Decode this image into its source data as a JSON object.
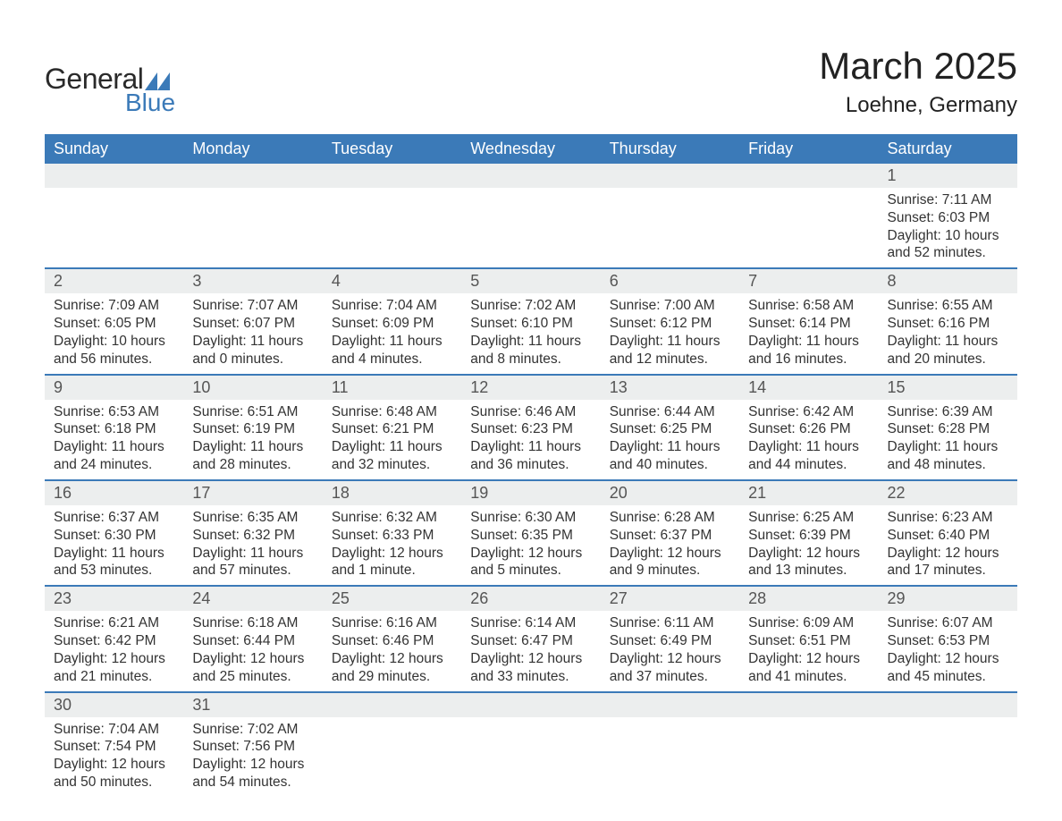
{
  "logo": {
    "text1": "General",
    "text2": "Blue",
    "shape_color": "#3b7ab8"
  },
  "title": "March 2025",
  "location": "Loehne, Germany",
  "colors": {
    "header_bg": "#3b7ab8",
    "header_text": "#ffffff",
    "daynum_bg": "#eceeee",
    "daynum_text": "#555555",
    "body_text": "#333333",
    "row_border": "#3b7ab8",
    "page_bg": "#ffffff"
  },
  "typography": {
    "title_fontsize": 42,
    "location_fontsize": 24,
    "header_fontsize": 18,
    "daynum_fontsize": 18,
    "body_fontsize": 15.5,
    "font_family": "Arial"
  },
  "weekdays": [
    "Sunday",
    "Monday",
    "Tuesday",
    "Wednesday",
    "Thursday",
    "Friday",
    "Saturday"
  ],
  "weeks": [
    [
      {
        "empty": true
      },
      {
        "empty": true
      },
      {
        "empty": true
      },
      {
        "empty": true
      },
      {
        "empty": true
      },
      {
        "empty": true
      },
      {
        "day": "1",
        "sunrise": "Sunrise: 7:11 AM",
        "sunset": "Sunset: 6:03 PM",
        "daylight1": "Daylight: 10 hours",
        "daylight2": "and 52 minutes."
      }
    ],
    [
      {
        "day": "2",
        "sunrise": "Sunrise: 7:09 AM",
        "sunset": "Sunset: 6:05 PM",
        "daylight1": "Daylight: 10 hours",
        "daylight2": "and 56 minutes."
      },
      {
        "day": "3",
        "sunrise": "Sunrise: 7:07 AM",
        "sunset": "Sunset: 6:07 PM",
        "daylight1": "Daylight: 11 hours",
        "daylight2": "and 0 minutes."
      },
      {
        "day": "4",
        "sunrise": "Sunrise: 7:04 AM",
        "sunset": "Sunset: 6:09 PM",
        "daylight1": "Daylight: 11 hours",
        "daylight2": "and 4 minutes."
      },
      {
        "day": "5",
        "sunrise": "Sunrise: 7:02 AM",
        "sunset": "Sunset: 6:10 PM",
        "daylight1": "Daylight: 11 hours",
        "daylight2": "and 8 minutes."
      },
      {
        "day": "6",
        "sunrise": "Sunrise: 7:00 AM",
        "sunset": "Sunset: 6:12 PM",
        "daylight1": "Daylight: 11 hours",
        "daylight2": "and 12 minutes."
      },
      {
        "day": "7",
        "sunrise": "Sunrise: 6:58 AM",
        "sunset": "Sunset: 6:14 PM",
        "daylight1": "Daylight: 11 hours",
        "daylight2": "and 16 minutes."
      },
      {
        "day": "8",
        "sunrise": "Sunrise: 6:55 AM",
        "sunset": "Sunset: 6:16 PM",
        "daylight1": "Daylight: 11 hours",
        "daylight2": "and 20 minutes."
      }
    ],
    [
      {
        "day": "9",
        "sunrise": "Sunrise: 6:53 AM",
        "sunset": "Sunset: 6:18 PM",
        "daylight1": "Daylight: 11 hours",
        "daylight2": "and 24 minutes."
      },
      {
        "day": "10",
        "sunrise": "Sunrise: 6:51 AM",
        "sunset": "Sunset: 6:19 PM",
        "daylight1": "Daylight: 11 hours",
        "daylight2": "and 28 minutes."
      },
      {
        "day": "11",
        "sunrise": "Sunrise: 6:48 AM",
        "sunset": "Sunset: 6:21 PM",
        "daylight1": "Daylight: 11 hours",
        "daylight2": "and 32 minutes."
      },
      {
        "day": "12",
        "sunrise": "Sunrise: 6:46 AM",
        "sunset": "Sunset: 6:23 PM",
        "daylight1": "Daylight: 11 hours",
        "daylight2": "and 36 minutes."
      },
      {
        "day": "13",
        "sunrise": "Sunrise: 6:44 AM",
        "sunset": "Sunset: 6:25 PM",
        "daylight1": "Daylight: 11 hours",
        "daylight2": "and 40 minutes."
      },
      {
        "day": "14",
        "sunrise": "Sunrise: 6:42 AM",
        "sunset": "Sunset: 6:26 PM",
        "daylight1": "Daylight: 11 hours",
        "daylight2": "and 44 minutes."
      },
      {
        "day": "15",
        "sunrise": "Sunrise: 6:39 AM",
        "sunset": "Sunset: 6:28 PM",
        "daylight1": "Daylight: 11 hours",
        "daylight2": "and 48 minutes."
      }
    ],
    [
      {
        "day": "16",
        "sunrise": "Sunrise: 6:37 AM",
        "sunset": "Sunset: 6:30 PM",
        "daylight1": "Daylight: 11 hours",
        "daylight2": "and 53 minutes."
      },
      {
        "day": "17",
        "sunrise": "Sunrise: 6:35 AM",
        "sunset": "Sunset: 6:32 PM",
        "daylight1": "Daylight: 11 hours",
        "daylight2": "and 57 minutes."
      },
      {
        "day": "18",
        "sunrise": "Sunrise: 6:32 AM",
        "sunset": "Sunset: 6:33 PM",
        "daylight1": "Daylight: 12 hours",
        "daylight2": "and 1 minute."
      },
      {
        "day": "19",
        "sunrise": "Sunrise: 6:30 AM",
        "sunset": "Sunset: 6:35 PM",
        "daylight1": "Daylight: 12 hours",
        "daylight2": "and 5 minutes."
      },
      {
        "day": "20",
        "sunrise": "Sunrise: 6:28 AM",
        "sunset": "Sunset: 6:37 PM",
        "daylight1": "Daylight: 12 hours",
        "daylight2": "and 9 minutes."
      },
      {
        "day": "21",
        "sunrise": "Sunrise: 6:25 AM",
        "sunset": "Sunset: 6:39 PM",
        "daylight1": "Daylight: 12 hours",
        "daylight2": "and 13 minutes."
      },
      {
        "day": "22",
        "sunrise": "Sunrise: 6:23 AM",
        "sunset": "Sunset: 6:40 PM",
        "daylight1": "Daylight: 12 hours",
        "daylight2": "and 17 minutes."
      }
    ],
    [
      {
        "day": "23",
        "sunrise": "Sunrise: 6:21 AM",
        "sunset": "Sunset: 6:42 PM",
        "daylight1": "Daylight: 12 hours",
        "daylight2": "and 21 minutes."
      },
      {
        "day": "24",
        "sunrise": "Sunrise: 6:18 AM",
        "sunset": "Sunset: 6:44 PM",
        "daylight1": "Daylight: 12 hours",
        "daylight2": "and 25 minutes."
      },
      {
        "day": "25",
        "sunrise": "Sunrise: 6:16 AM",
        "sunset": "Sunset: 6:46 PM",
        "daylight1": "Daylight: 12 hours",
        "daylight2": "and 29 minutes."
      },
      {
        "day": "26",
        "sunrise": "Sunrise: 6:14 AM",
        "sunset": "Sunset: 6:47 PM",
        "daylight1": "Daylight: 12 hours",
        "daylight2": "and 33 minutes."
      },
      {
        "day": "27",
        "sunrise": "Sunrise: 6:11 AM",
        "sunset": "Sunset: 6:49 PM",
        "daylight1": "Daylight: 12 hours",
        "daylight2": "and 37 minutes."
      },
      {
        "day": "28",
        "sunrise": "Sunrise: 6:09 AM",
        "sunset": "Sunset: 6:51 PM",
        "daylight1": "Daylight: 12 hours",
        "daylight2": "and 41 minutes."
      },
      {
        "day": "29",
        "sunrise": "Sunrise: 6:07 AM",
        "sunset": "Sunset: 6:53 PM",
        "daylight1": "Daylight: 12 hours",
        "daylight2": "and 45 minutes."
      }
    ],
    [
      {
        "day": "30",
        "sunrise": "Sunrise: 7:04 AM",
        "sunset": "Sunset: 7:54 PM",
        "daylight1": "Daylight: 12 hours",
        "daylight2": "and 50 minutes."
      },
      {
        "day": "31",
        "sunrise": "Sunrise: 7:02 AM",
        "sunset": "Sunset: 7:56 PM",
        "daylight1": "Daylight: 12 hours",
        "daylight2": "and 54 minutes."
      },
      {
        "empty": true
      },
      {
        "empty": true
      },
      {
        "empty": true
      },
      {
        "empty": true
      },
      {
        "empty": true
      }
    ]
  ]
}
